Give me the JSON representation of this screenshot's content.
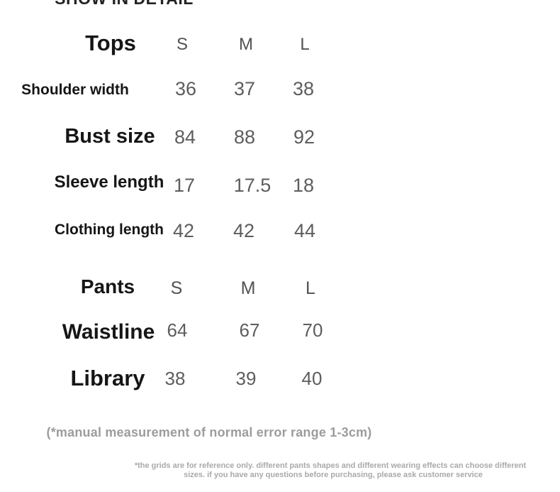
{
  "page_title": "SHOW IN DETAIL",
  "size_chart": {
    "tops": {
      "title": "Tops",
      "columns": [
        "S",
        "M",
        "L"
      ],
      "rows": [
        {
          "label": "Shoulder width",
          "values": [
            "36",
            "37",
            "38"
          ]
        },
        {
          "label": "Bust size",
          "values": [
            "84",
            "88",
            "92"
          ]
        },
        {
          "label": "Sleeve length",
          "values": [
            "17",
            "17.5",
            "18"
          ]
        },
        {
          "label": "Clothing length",
          "values": [
            "42",
            "42",
            "44"
          ]
        }
      ]
    },
    "pants": {
      "title": "Pants",
      "columns": [
        "S",
        "M",
        "L"
      ],
      "rows": [
        {
          "label": "Waistline",
          "values": [
            "64",
            "67",
            "70"
          ]
        },
        {
          "label": "Library",
          "values": [
            "38",
            "39",
            "40"
          ]
        }
      ]
    }
  },
  "notes": {
    "measurement": "(*manual measurement of normal error range 1-3cm)",
    "disclaimer_lines": [
      "*the grids are for reference only. different pants shapes and different wearing effects can choose different",
      "sizes. if you have any questions before purchasing, please ask customer service"
    ]
  },
  "colors": {
    "background": "#ffffff",
    "label_text": "#161616",
    "value_text": "#5d5d5d",
    "column_header_text": "#525252",
    "note_text": "#9c9c9c",
    "disclaimer_text": "#a9a9a9"
  }
}
